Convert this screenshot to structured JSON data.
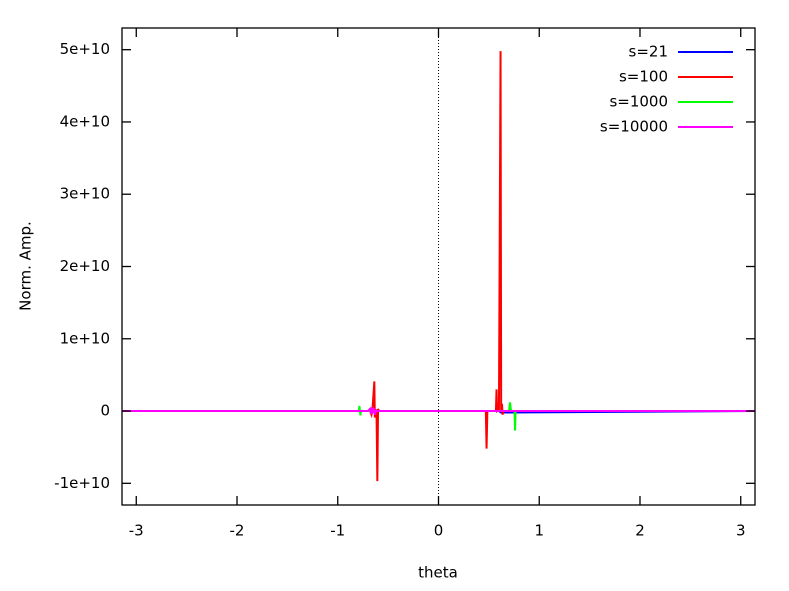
{
  "chart_data": {
    "type": "line",
    "xlabel": "theta",
    "ylabel": "Norm. Amp.",
    "xlim": [
      -3.1416,
      3.1416
    ],
    "ylim": [
      -13000000000,
      53000000000
    ],
    "xticks": [
      -3,
      -2,
      -1,
      0,
      1,
      2,
      3
    ],
    "yticks": [
      {
        "value": -10000000000,
        "label": "-1e+10"
      },
      0,
      {
        "value": 10000000000,
        "label": "1e+10"
      },
      {
        "value": 20000000000,
        "label": "2e+10"
      },
      {
        "value": 30000000000,
        "label": "3e+10"
      },
      {
        "value": 40000000000,
        "label": "4e+10"
      },
      {
        "value": 50000000000,
        "label": "5e+10"
      }
    ],
    "zero_axis": true,
    "legend": "top right",
    "series": [
      {
        "name": "s=21",
        "color": "#0000ff",
        "x": [
          -3.1416,
          -0.66,
          -0.64,
          -0.6,
          0.6,
          0.62,
          3.1416
        ],
        "values": [
          0,
          0,
          200000000,
          0,
          0,
          -200000000,
          0
        ]
      },
      {
        "name": "s=100",
        "color": "#ff0000",
        "x": [
          -3.1416,
          -0.68,
          -0.665,
          -0.655,
          -0.637,
          -0.632,
          -0.625,
          -0.615,
          -0.607,
          -0.6,
          -0.59,
          0.47,
          0.477,
          0.485,
          0.57,
          0.576,
          0.582,
          0.6,
          0.616,
          0.622,
          0.63,
          0.636,
          0.645,
          3.1416
        ],
        "values": [
          0,
          0,
          -500000000,
          300000000,
          4100000000,
          -900000000,
          200000000,
          -300000000,
          -9700000000,
          300000000,
          0,
          0,
          -5200000000,
          0,
          0,
          3000000000,
          0,
          200000000,
          49800000000,
          0,
          1000000000,
          -500000000,
          0,
          0
        ]
      },
      {
        "name": "s=1000",
        "color": "#00ff00",
        "x": [
          -3.1416,
          -0.79,
          -0.785,
          -0.775,
          -0.77,
          0.7,
          0.71,
          0.72,
          0.755,
          0.76,
          0.765,
          3.1416
        ],
        "values": [
          0,
          0,
          700000000,
          -600000000,
          0,
          0,
          1200000000,
          0,
          0,
          -2700000000,
          0,
          0
        ]
      },
      {
        "name": "s=10000",
        "color": "#ff00ff",
        "x": [
          -3.1416,
          -0.7,
          -0.68,
          -0.67,
          -0.66,
          -0.65,
          -0.64,
          -0.63,
          -0.62,
          -0.55,
          0.3,
          3.1416
        ],
        "values": [
          0,
          0,
          300000000,
          -400000000,
          500000000,
          -300000000,
          400000000,
          -500000000,
          0,
          0,
          0,
          0
        ]
      }
    ]
  }
}
